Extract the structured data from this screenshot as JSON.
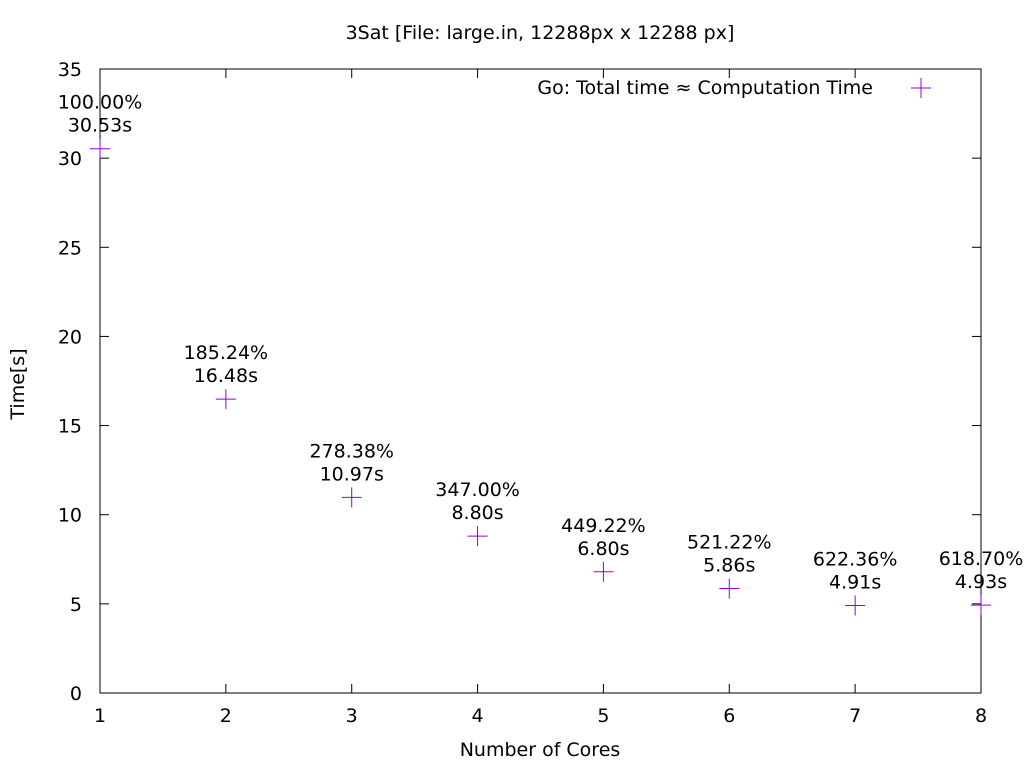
{
  "chart_data": {
    "type": "scatter",
    "title": "3Sat [File: large.in, 12288px x 12288 px]",
    "xlabel": "Number of Cores",
    "ylabel": "Time[s]",
    "xlim": [
      1,
      8
    ],
    "ylim": [
      0,
      35
    ],
    "xticks": [
      1,
      2,
      3,
      4,
      5,
      6,
      7,
      8
    ],
    "yticks": [
      0,
      5,
      10,
      15,
      20,
      25,
      30,
      35
    ],
    "grid": false,
    "legend_position": "top-right",
    "series": [
      {
        "name": "Go: Total time ≈ Computation Time",
        "color": "#9400d3",
        "marker": "plus",
        "x": [
          1,
          2,
          3,
          4,
          5,
          6,
          7,
          8
        ],
        "y": [
          30.53,
          16.48,
          10.97,
          8.8,
          6.8,
          5.86,
          4.91,
          4.93
        ],
        "labels": [
          [
            "100.00%",
            "30.53s"
          ],
          [
            "185.24%",
            "16.48s"
          ],
          [
            "278.38%",
            "10.97s"
          ],
          [
            "347.00%",
            "8.80s"
          ],
          [
            "449.22%",
            "6.80s"
          ],
          [
            "521.22%",
            "5.86s"
          ],
          [
            "622.36%",
            "4.91s"
          ],
          [
            "618.70%",
            "4.93s"
          ]
        ]
      }
    ]
  }
}
